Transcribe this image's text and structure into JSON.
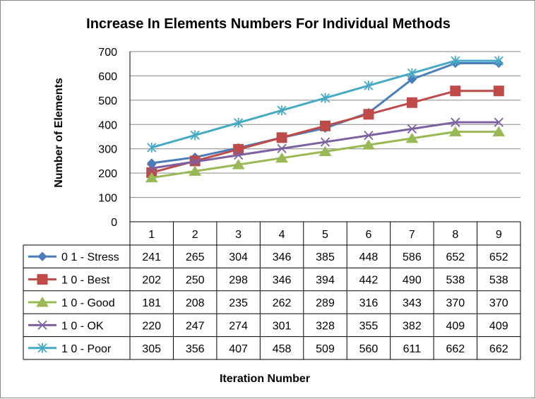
{
  "chart_data": {
    "type": "line",
    "title": "Increase In Elements Numbers For Individual Methods",
    "xlabel": "Iteration Number",
    "ylabel": "Number of Elements",
    "categories": [
      "1",
      "2",
      "3",
      "4",
      "5",
      "6",
      "7",
      "8",
      "9"
    ],
    "ylim": [
      0,
      700
    ],
    "yticks": [
      0,
      100,
      200,
      300,
      400,
      500,
      600,
      700
    ],
    "grid": true,
    "legend": "data-table",
    "series": [
      {
        "name": "0 1 - Stress",
        "color": "#4a7ebb",
        "marker": "diamond",
        "values": [
          241,
          265,
          304,
          346,
          385,
          448,
          586,
          652,
          652
        ]
      },
      {
        "name": "1 0  - Best",
        "color": "#be4b48",
        "marker": "square",
        "values": [
          202,
          250,
          298,
          346,
          394,
          442,
          490,
          538,
          538
        ]
      },
      {
        "name": "1 0 - Good",
        "color": "#98b954",
        "marker": "triangle",
        "values": [
          181,
          208,
          235,
          262,
          289,
          316,
          343,
          370,
          370
        ]
      },
      {
        "name": "1 0 - OK",
        "color": "#7d60a0",
        "marker": "x",
        "values": [
          220,
          247,
          274,
          301,
          328,
          355,
          382,
          409,
          409
        ]
      },
      {
        "name": "1 0 - Poor",
        "color": "#46aac5",
        "marker": "star",
        "values": [
          305,
          356,
          407,
          458,
          509,
          560,
          611,
          662,
          662
        ]
      }
    ]
  }
}
